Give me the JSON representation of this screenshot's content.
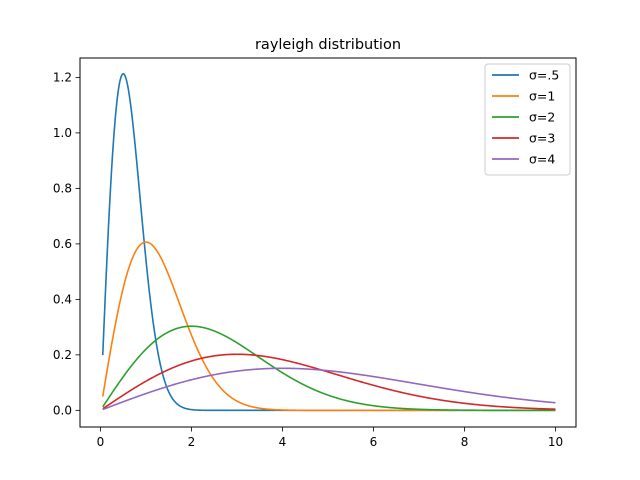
{
  "chart_data": {
    "type": "line",
    "title": "rayleigh distribution",
    "xlabel": "",
    "ylabel": "",
    "xlim": [
      -0.45,
      10.45
    ],
    "ylim": [
      -0.06,
      1.27
    ],
    "xticks": [
      0,
      2,
      4,
      6,
      8,
      10
    ],
    "xtick_labels": [
      "0",
      "2",
      "4",
      "6",
      "8",
      "10"
    ],
    "yticks": [
      0.0,
      0.2,
      0.4,
      0.6,
      0.8,
      1.0,
      1.2
    ],
    "ytick_labels": [
      "0.0",
      "0.2",
      "0.4",
      "0.6",
      "0.8",
      "1.0",
      "1.2"
    ],
    "grid": false,
    "legend_position": "top-right",
    "x_range": [
      0.05,
      10
    ],
    "series": [
      {
        "name": "σ=.5",
        "sigma": 0.5,
        "color": "#1f77b4",
        "x": [
          0.05,
          0.1,
          0.2,
          0.3,
          0.4,
          0.5,
          0.6,
          0.7,
          0.8,
          1.0,
          1.2,
          1.4,
          1.6,
          1.8,
          2.0,
          2.5,
          3.0,
          10.0
        ],
        "y": [
          0.198,
          0.392,
          0.738,
          0.998,
          1.163,
          1.213,
          1.162,
          1.052,
          0.898,
          0.541,
          0.27,
          0.111,
          0.038,
          0.011,
          0.003,
          0.0,
          0.0,
          0.0
        ]
      },
      {
        "name": "σ=1",
        "sigma": 1,
        "color": "#ff7f0e",
        "x": [
          0.05,
          0.25,
          0.5,
          0.75,
          1.0,
          1.25,
          1.5,
          1.75,
          2.0,
          2.5,
          3.0,
          3.5,
          4.0,
          5.0,
          10.0
        ],
        "y": [
          0.05,
          0.242,
          0.441,
          0.566,
          0.607,
          0.571,
          0.487,
          0.379,
          0.271,
          0.11,
          0.033,
          0.008,
          0.001,
          0.0,
          0.0
        ]
      },
      {
        "name": "σ=2",
        "sigma": 2,
        "color": "#2ca02c",
        "x": [
          0.05,
          0.5,
          1.0,
          1.5,
          2.0,
          2.5,
          3.0,
          3.5,
          4.0,
          5.0,
          6.0,
          7.0,
          8.0,
          10.0
        ],
        "y": [
          0.012,
          0.121,
          0.221,
          0.283,
          0.303,
          0.286,
          0.243,
          0.189,
          0.135,
          0.055,
          0.017,
          0.004,
          0.001,
          0.0
        ]
      },
      {
        "name": "σ=3",
        "sigma": 3,
        "color": "#d62728",
        "x": [
          0.05,
          1.0,
          2.0,
          3.0,
          4.0,
          5.0,
          6.0,
          7.0,
          8.0,
          9.0,
          10.0
        ],
        "y": [
          0.006,
          0.105,
          0.178,
          0.202,
          0.182,
          0.139,
          0.09,
          0.051,
          0.025,
          0.011,
          0.004
        ]
      },
      {
        "name": "σ=4",
        "sigma": 4,
        "color": "#9467bd",
        "x": [
          0.05,
          1.0,
          2.0,
          3.0,
          4.0,
          5.0,
          6.0,
          7.0,
          8.0,
          9.0,
          10.0
        ],
        "y": [
          0.003,
          0.061,
          0.11,
          0.141,
          0.152,
          0.143,
          0.122,
          0.095,
          0.068,
          0.045,
          0.027
        ]
      }
    ]
  }
}
